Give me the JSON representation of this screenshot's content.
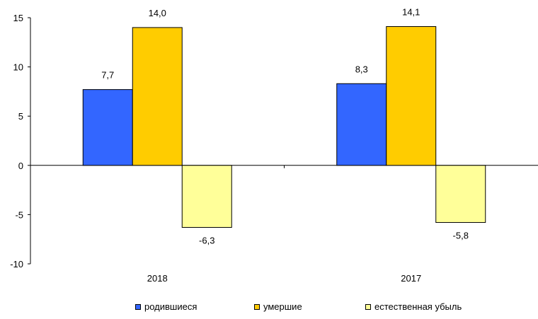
{
  "chart_data": {
    "type": "bar",
    "categories": [
      "2018",
      "2017"
    ],
    "series": [
      {
        "name": "родившиеся",
        "values": [
          7.7,
          8.3
        ],
        "labels": [
          "7,7",
          "8,3"
        ],
        "color": "#3366FF"
      },
      {
        "name": "умершие",
        "values": [
          14.0,
          14.1
        ],
        "labels": [
          "14,0",
          "14,1"
        ],
        "color": "#FFCC00"
      },
      {
        "name": "естественная убыль",
        "values": [
          -6.3,
          -5.8
        ],
        "labels": [
          "-6,3",
          "-5,8"
        ],
        "color": "#FFFF99"
      }
    ],
    "ylim": [
      -10,
      15
    ],
    "yticks": [
      15,
      10,
      5,
      0,
      -5,
      -10
    ],
    "grid": false,
    "legend_position": "bottom"
  }
}
